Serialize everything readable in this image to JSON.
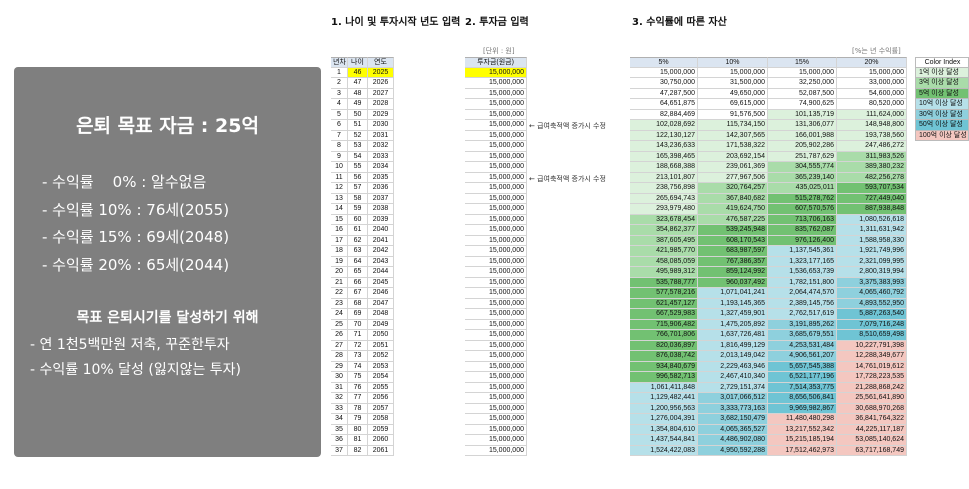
{
  "headers": {
    "h1": "1. 나이 및 투자시작 년도 입력",
    "h2": "2. 투자금 입력",
    "h3": "3. 수익률에 따른 자산",
    "unit_left": "[단위 : 원]",
    "unit_right": "[%는 년 수익률]"
  },
  "panel": {
    "title": "은퇴 목표 자금 : 25억",
    "rates": [
      "- 수익률    0% : 알수없음",
      "- 수익률 10% : 76세(2055)",
      "- 수익률 15% : 69세(2048)",
      "- 수익률 20% : 65세(2044)"
    ],
    "subtitle": "목표 은퇴시기를 달성하기 위해",
    "lines": [
      "- 연 1천5백만원 저축, 꾸준한투자",
      "- 수익률 10% 달성 (잃지않는 투자)"
    ]
  },
  "left_table": {
    "columns": [
      "년차",
      "나이",
      "연도"
    ],
    "rows": [
      [
        "1",
        "46",
        "2025"
      ],
      [
        "2",
        "47",
        "2026"
      ],
      [
        "3",
        "48",
        "2027"
      ],
      [
        "4",
        "49",
        "2028"
      ],
      [
        "5",
        "50",
        "2029"
      ],
      [
        "6",
        "51",
        "2030"
      ],
      [
        "7",
        "52",
        "2031"
      ],
      [
        "8",
        "53",
        "2032"
      ],
      [
        "9",
        "54",
        "2033"
      ],
      [
        "10",
        "55",
        "2034"
      ],
      [
        "11",
        "56",
        "2035"
      ],
      [
        "12",
        "57",
        "2036"
      ],
      [
        "13",
        "58",
        "2037"
      ],
      [
        "14",
        "59",
        "2038"
      ],
      [
        "15",
        "60",
        "2039"
      ],
      [
        "16",
        "61",
        "2040"
      ],
      [
        "17",
        "62",
        "2041"
      ],
      [
        "18",
        "63",
        "2042"
      ],
      [
        "19",
        "64",
        "2043"
      ],
      [
        "20",
        "65",
        "2044"
      ],
      [
        "21",
        "66",
        "2045"
      ],
      [
        "22",
        "67",
        "2046"
      ],
      [
        "23",
        "68",
        "2047"
      ],
      [
        "24",
        "69",
        "2048"
      ],
      [
        "25",
        "70",
        "2049"
      ],
      [
        "26",
        "71",
        "2050"
      ],
      [
        "27",
        "72",
        "2051"
      ],
      [
        "28",
        "73",
        "2052"
      ],
      [
        "29",
        "74",
        "2053"
      ],
      [
        "30",
        "75",
        "2054"
      ],
      [
        "31",
        "76",
        "2055"
      ],
      [
        "32",
        "77",
        "2056"
      ],
      [
        "33",
        "78",
        "2057"
      ],
      [
        "34",
        "79",
        "2058"
      ],
      [
        "35",
        "80",
        "2059"
      ],
      [
        "36",
        "81",
        "2060"
      ],
      [
        "37",
        "82",
        "2061"
      ]
    ]
  },
  "invest_table": {
    "column": "투자금(원금)",
    "value": "15,000,000",
    "notes": [
      {
        "row": 5,
        "text": "← 급여축적액 증가시 수정"
      },
      {
        "row": 10,
        "text": "← 급여축적액 증가시 수정"
      }
    ]
  },
  "returns_table": {
    "columns": [
      "5%",
      "10%",
      "15%",
      "20%"
    ],
    "rows": [
      [
        "15,000,000",
        "15,000,000",
        "15,000,000",
        "15,000,000"
      ],
      [
        "30,750,000",
        "31,500,000",
        "32,250,000",
        "33,000,000"
      ],
      [
        "47,287,500",
        "49,650,000",
        "52,087,500",
        "54,600,000"
      ],
      [
        "64,651,875",
        "69,615,000",
        "74,900,625",
        "80,520,000"
      ],
      [
        "82,884,469",
        "91,576,500",
        "101,135,719",
        "111,624,000"
      ],
      [
        "102,028,692",
        "115,734,150",
        "131,306,077",
        "148,948,800"
      ],
      [
        "122,130,127",
        "142,307,565",
        "166,001,988",
        "193,738,560"
      ],
      [
        "143,236,633",
        "171,538,322",
        "205,902,286",
        "247,486,272"
      ],
      [
        "165,398,465",
        "203,692,154",
        "251,787,629",
        "311,983,526"
      ],
      [
        "188,668,388",
        "239,061,369",
        "304,555,774",
        "389,380,232"
      ],
      [
        "213,101,807",
        "277,967,506",
        "365,239,140",
        "482,256,278"
      ],
      [
        "238,756,898",
        "320,764,257",
        "435,025,011",
        "593,707,534"
      ],
      [
        "265,694,743",
        "367,840,682",
        "515,278,762",
        "727,449,040"
      ],
      [
        "293,979,480",
        "419,624,750",
        "607,570,576",
        "887,938,848"
      ],
      [
        "323,678,454",
        "476,587,225",
        "713,706,163",
        "1,080,526,618"
      ],
      [
        "354,862,377",
        "539,245,948",
        "835,762,087",
        "1,311,631,942"
      ],
      [
        "387,605,495",
        "608,170,543",
        "976,126,400",
        "1,588,958,330"
      ],
      [
        "421,985,770",
        "683,987,597",
        "1,137,545,361",
        "1,921,749,996"
      ],
      [
        "458,085,059",
        "767,386,357",
        "1,323,177,165",
        "2,321,099,995"
      ],
      [
        "495,989,312",
        "859,124,992",
        "1,536,653,739",
        "2,800,319,994"
      ],
      [
        "535,788,777",
        "960,037,492",
        "1,782,151,800",
        "3,375,383,993"
      ],
      [
        "577,578,216",
        "1,071,041,241",
        "2,064,474,570",
        "4,065,460,792"
      ],
      [
        "621,457,127",
        "1,193,145,365",
        "2,389,145,756",
        "4,893,552,950"
      ],
      [
        "667,529,983",
        "1,327,459,901",
        "2,762,517,619",
        "5,887,263,540"
      ],
      [
        "715,906,482",
        "1,475,205,892",
        "3,191,895,262",
        "7,079,716,248"
      ],
      [
        "766,701,806",
        "1,637,726,481",
        "3,685,679,551",
        "8,510,659,498"
      ],
      [
        "820,036,897",
        "1,816,499,129",
        "4,253,531,484",
        "10,227,791,398"
      ],
      [
        "876,038,742",
        "2,013,149,042",
        "4,906,561,207",
        "12,288,349,677"
      ],
      [
        "934,840,679",
        "2,229,463,946",
        "5,657,545,388",
        "14,761,019,612"
      ],
      [
        "996,582,713",
        "2,467,410,340",
        "6,521,177,196",
        "17,728,223,535"
      ],
      [
        "1,061,411,848",
        "2,729,151,374",
        "7,514,353,775",
        "21,288,868,242"
      ],
      [
        "1,129,482,441",
        "3,017,066,512",
        "8,656,506,841",
        "25,561,641,890"
      ],
      [
        "1,200,956,563",
        "3,333,773,163",
        "9,969,982,867",
        "30,688,970,268"
      ],
      [
        "1,276,004,391",
        "3,682,150,479",
        "11,480,480,298",
        "36,841,764,322"
      ],
      [
        "1,354,804,610",
        "4,065,365,527",
        "13,217,552,342",
        "44,225,117,187"
      ],
      [
        "1,437,544,841",
        "4,486,902,080",
        "15,215,185,194",
        "53,085,140,624"
      ],
      [
        "1,524,422,083",
        "4,950,592,288",
        "17,512,462,973",
        "63,717,168,749"
      ]
    ],
    "colors": {
      "c1": "#dcf1dc",
      "c3": "#a9dca9",
      "c5": "#72c172",
      "c10": "#b6e0e9",
      "c30": "#8ed0dd",
      "c50": "#6fc4d4",
      "c100": "#f4c7c0"
    }
  },
  "legend": {
    "title": "Color Index",
    "items": [
      "1억 이상 달성",
      "3억 이상 달성",
      "5억 이상 달성",
      "10억 이상 달성",
      "30억 이상 달성",
      "50억 이상 달성",
      "100억 이상 달성"
    ]
  }
}
